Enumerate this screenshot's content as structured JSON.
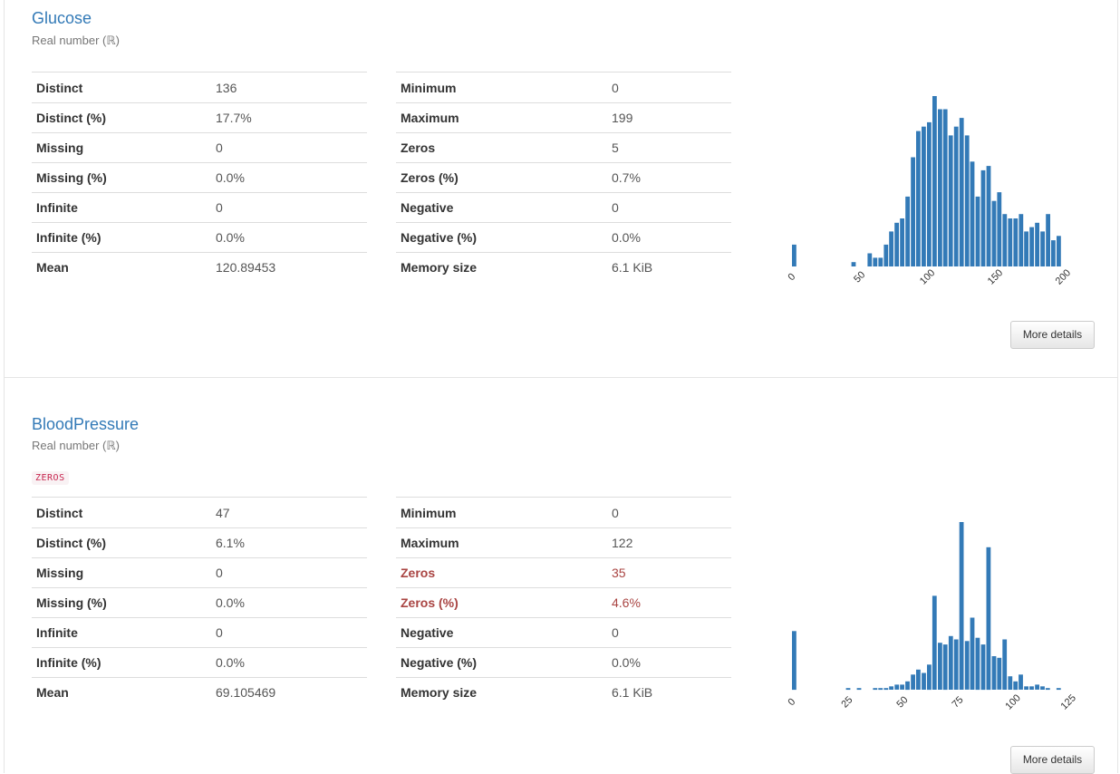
{
  "variables": [
    {
      "name": "Glucose",
      "type": "Real number (ℝ)",
      "badge": "",
      "left_stats": [
        {
          "key": "Distinct",
          "value": "136"
        },
        {
          "key": "Distinct (%)",
          "value": "17.7%"
        },
        {
          "key": "Missing",
          "value": "0"
        },
        {
          "key": "Missing (%)",
          "value": "0.0%"
        },
        {
          "key": "Infinite",
          "value": "0"
        },
        {
          "key": "Infinite (%)",
          "value": "0.0%"
        },
        {
          "key": "Mean",
          "value": "120.89453"
        }
      ],
      "right_stats": [
        {
          "key": "Minimum",
          "value": "0"
        },
        {
          "key": "Maximum",
          "value": "199"
        },
        {
          "key": "Zeros",
          "value": "5"
        },
        {
          "key": "Zeros (%)",
          "value": "0.7%"
        },
        {
          "key": "Negative",
          "value": "0"
        },
        {
          "key": "Negative (%)",
          "value": "0.0%"
        },
        {
          "key": "Memory size",
          "value": "6.1 KiB"
        }
      ],
      "button_label": "More details"
    },
    {
      "name": "BloodPressure",
      "type": "Real number (ℝ)",
      "badge": "ZEROS",
      "left_stats": [
        {
          "key": "Distinct",
          "value": "47"
        },
        {
          "key": "Distinct (%)",
          "value": "6.1%"
        },
        {
          "key": "Missing",
          "value": "0"
        },
        {
          "key": "Missing (%)",
          "value": "0.0%"
        },
        {
          "key": "Infinite",
          "value": "0"
        },
        {
          "key": "Infinite (%)",
          "value": "0.0%"
        },
        {
          "key": "Mean",
          "value": "69.105469"
        }
      ],
      "right_stats": [
        {
          "key": "Minimum",
          "value": "0"
        },
        {
          "key": "Maximum",
          "value": "122"
        },
        {
          "key": "Zeros",
          "value": "35",
          "alert": true
        },
        {
          "key": "Zeros (%)",
          "value": "4.6%",
          "alert": true
        },
        {
          "key": "Negative",
          "value": "0"
        },
        {
          "key": "Negative (%)",
          "value": "0.0%"
        },
        {
          "key": "Memory size",
          "value": "6.1 KiB"
        }
      ],
      "button_label": "More details"
    }
  ],
  "chart_data": [
    {
      "type": "bar",
      "variable": "Glucose",
      "bar_color": "#337ab7",
      "xlim": [
        0,
        199
      ],
      "x_ticks": [
        "0",
        "50",
        "100",
        "150",
        "200"
      ],
      "x_tick_values": [
        0,
        50,
        100,
        150,
        200
      ],
      "bin_width": 3.98,
      "bins": [
        {
          "x": 0,
          "count": 5
        },
        {
          "x": 43.8,
          "count": 1
        },
        {
          "x": 55.7,
          "count": 3
        },
        {
          "x": 59.7,
          "count": 2
        },
        {
          "x": 63.7,
          "count": 2
        },
        {
          "x": 67.7,
          "count": 5
        },
        {
          "x": 71.6,
          "count": 8
        },
        {
          "x": 75.6,
          "count": 10
        },
        {
          "x": 79.6,
          "count": 11
        },
        {
          "x": 83.6,
          "count": 16
        },
        {
          "x": 87.6,
          "count": 25
        },
        {
          "x": 91.5,
          "count": 31
        },
        {
          "x": 95.5,
          "count": 32
        },
        {
          "x": 99.5,
          "count": 33
        },
        {
          "x": 103.5,
          "count": 39
        },
        {
          "x": 107.5,
          "count": 36
        },
        {
          "x": 111.4,
          "count": 36
        },
        {
          "x": 115.4,
          "count": 30
        },
        {
          "x": 119.4,
          "count": 32
        },
        {
          "x": 123.4,
          "count": 34
        },
        {
          "x": 127.4,
          "count": 30
        },
        {
          "x": 131.3,
          "count": 24
        },
        {
          "x": 135.3,
          "count": 16
        },
        {
          "x": 139.3,
          "count": 22
        },
        {
          "x": 143.3,
          "count": 23
        },
        {
          "x": 147.3,
          "count": 15
        },
        {
          "x": 151.2,
          "count": 17
        },
        {
          "x": 155.2,
          "count": 12
        },
        {
          "x": 159.2,
          "count": 11
        },
        {
          "x": 163.2,
          "count": 11
        },
        {
          "x": 167.2,
          "count": 12
        },
        {
          "x": 171.1,
          "count": 8
        },
        {
          "x": 175.1,
          "count": 9
        },
        {
          "x": 179.1,
          "count": 10
        },
        {
          "x": 183.1,
          "count": 8
        },
        {
          "x": 187.1,
          "count": 12
        },
        {
          "x": 191.0,
          "count": 6
        },
        {
          "x": 195.0,
          "count": 7
        }
      ]
    },
    {
      "type": "bar",
      "variable": "BloodPressure",
      "bar_color": "#337ab7",
      "xlim": [
        0,
        122
      ],
      "x_ticks": [
        "0",
        "25",
        "50",
        "75",
        "100",
        "125"
      ],
      "x_tick_values": [
        0,
        25,
        50,
        75,
        100,
        125
      ],
      "bin_width": 2.44,
      "bins": [
        {
          "x": 0,
          "count": 35
        },
        {
          "x": 24.4,
          "count": 1
        },
        {
          "x": 29.3,
          "count": 1
        },
        {
          "x": 36.6,
          "count": 1
        },
        {
          "x": 39.0,
          "count": 1
        },
        {
          "x": 41.5,
          "count": 1
        },
        {
          "x": 43.9,
          "count": 2
        },
        {
          "x": 46.4,
          "count": 3
        },
        {
          "x": 48.8,
          "count": 3
        },
        {
          "x": 51.2,
          "count": 5
        },
        {
          "x": 53.7,
          "count": 9
        },
        {
          "x": 56.1,
          "count": 12
        },
        {
          "x": 58.6,
          "count": 10
        },
        {
          "x": 61.0,
          "count": 15
        },
        {
          "x": 63.4,
          "count": 56
        },
        {
          "x": 65.9,
          "count": 28
        },
        {
          "x": 68.3,
          "count": 27
        },
        {
          "x": 70.8,
          "count": 32
        },
        {
          "x": 73.2,
          "count": 30
        },
        {
          "x": 75.6,
          "count": 100
        },
        {
          "x": 78.1,
          "count": 29
        },
        {
          "x": 80.5,
          "count": 43
        },
        {
          "x": 82.9,
          "count": 31
        },
        {
          "x": 85.4,
          "count": 27
        },
        {
          "x": 87.8,
          "count": 85
        },
        {
          "x": 90.3,
          "count": 20
        },
        {
          "x": 92.7,
          "count": 19
        },
        {
          "x": 95.1,
          "count": 30
        },
        {
          "x": 97.6,
          "count": 8
        },
        {
          "x": 100.0,
          "count": 5
        },
        {
          "x": 102.4,
          "count": 9
        },
        {
          "x": 104.9,
          "count": 2
        },
        {
          "x": 107.3,
          "count": 2
        },
        {
          "x": 109.8,
          "count": 3
        },
        {
          "x": 112.2,
          "count": 2
        },
        {
          "x": 114.6,
          "count": 1
        },
        {
          "x": 119.5,
          "count": 1
        }
      ]
    }
  ]
}
